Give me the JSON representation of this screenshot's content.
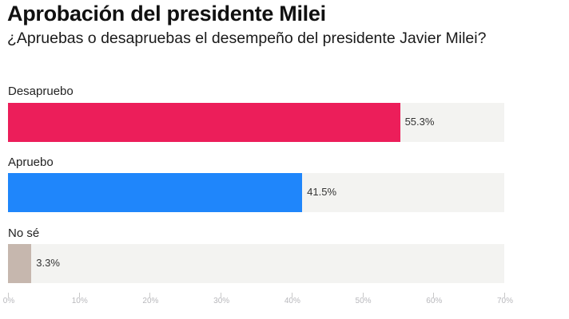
{
  "chart_data": {
    "type": "bar",
    "orientation": "horizontal",
    "title": "Aprobación del presidente Milei",
    "subtitle": "¿Apruebas o desapruebas el desempeño del presidente Javier Milei?",
    "categories": [
      "Desapruebo",
      "Apruebo",
      "No sé"
    ],
    "values": [
      55.3,
      41.5,
      3.3
    ],
    "value_labels": [
      "55.3%",
      "41.5%",
      "3.3%"
    ],
    "colors": [
      "#ec1e5a",
      "#1f86fb",
      "#c6b7ae"
    ],
    "track_color": "#f3f3f1",
    "xlabel": "",
    "ylabel": "",
    "xlim": [
      0,
      70
    ],
    "x_ticks": [
      0,
      10,
      20,
      30,
      40,
      50,
      60,
      70
    ],
    "x_tick_labels": [
      "0%",
      "10%",
      "20%",
      "30%",
      "40%",
      "50%",
      "60%",
      "70%"
    ],
    "grid": false,
    "legend": "none"
  }
}
